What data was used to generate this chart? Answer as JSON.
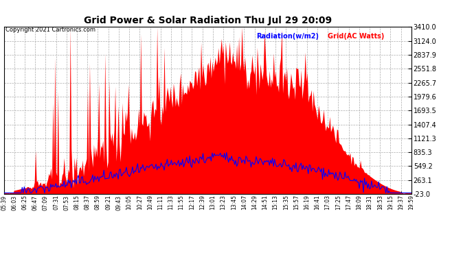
{
  "title": "Grid Power & Solar Radiation Thu Jul 29 20:09",
  "copyright": "Copyright 2021 Cartronics.com",
  "legend_radiation": "Radiation(w/m2)",
  "legend_grid": "Grid(AC Watts)",
  "y_min": -23.0,
  "y_max": 3410.0,
  "yticks": [
    -23.0,
    263.1,
    549.2,
    835.3,
    1121.3,
    1407.4,
    1693.5,
    1979.6,
    2265.7,
    2551.8,
    2837.9,
    3124.0,
    3410.0
  ],
  "bg_color": "#ffffff",
  "grid_color": "#aaaaaa",
  "radiation_color": "#0000ff",
  "grid_fill_color": "#ff0000",
  "xtick_labels": [
    "05:39",
    "06:03",
    "06:25",
    "06:47",
    "07:09",
    "07:31",
    "07:53",
    "08:15",
    "08:37",
    "08:59",
    "09:21",
    "09:43",
    "10:05",
    "10:27",
    "10:49",
    "11:11",
    "11:33",
    "11:55",
    "12:17",
    "12:39",
    "13:01",
    "13:23",
    "13:45",
    "14:07",
    "14:29",
    "14:51",
    "15:13",
    "15:35",
    "15:57",
    "16:19",
    "16:41",
    "17:03",
    "17:25",
    "17:47",
    "18:09",
    "18:31",
    "18:53",
    "19:15",
    "19:37",
    "19:59"
  ],
  "n_points": 400
}
